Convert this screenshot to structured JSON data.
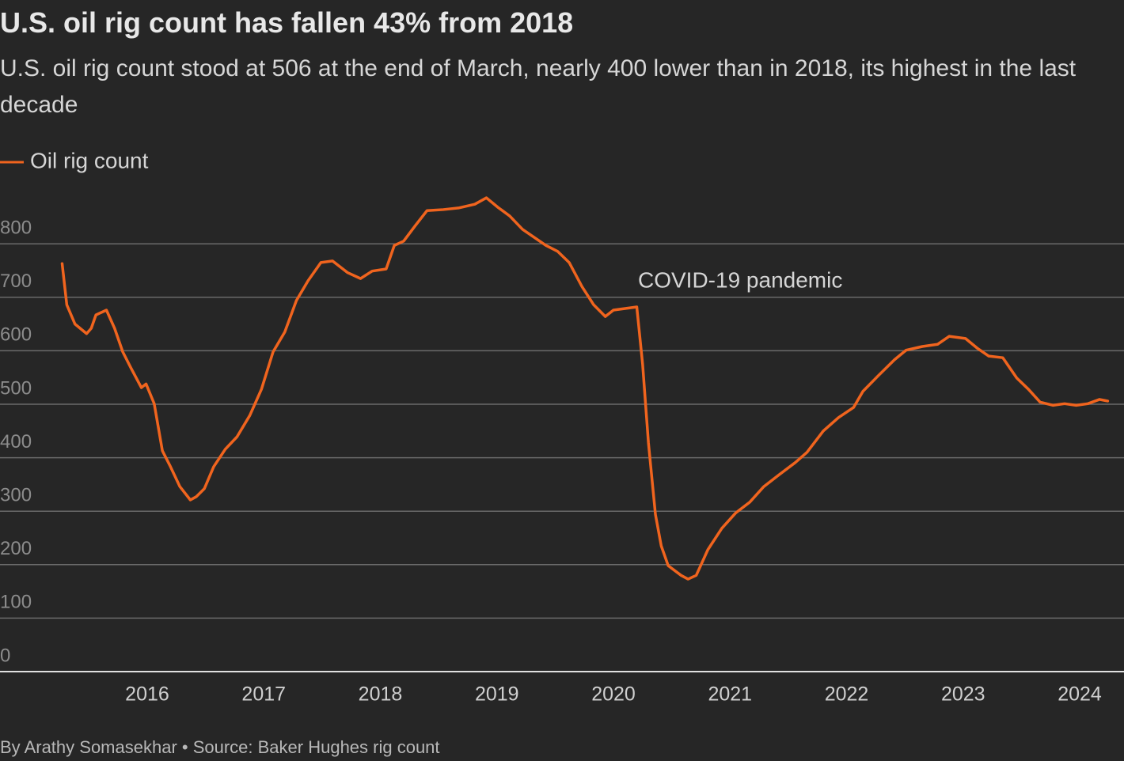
{
  "chart_data": {
    "type": "line",
    "title": "U.S. oil rig count has fallen 43% from 2018",
    "subtitle": "U.S. oil rig count stood at 506 at the end of March, nearly 400 lower than in 2018, its highest in the last decade",
    "annotation": "COVID-19 pandemic",
    "source": "By Arathy Somasekhar • Source: Baker Hughes rig count",
    "x": [
      2015.27,
      2015.31,
      2015.38,
      2015.48,
      2015.52,
      2015.56,
      2015.65,
      2015.72,
      2015.79,
      2015.86,
      2015.95,
      2015.99,
      2016.06,
      2016.13,
      2016.2,
      2016.28,
      2016.37,
      2016.42,
      2016.49,
      2016.57,
      2016.67,
      2016.77,
      2016.88,
      2016.98,
      2017.08,
      2017.18,
      2017.28,
      2017.38,
      2017.49,
      2017.59,
      2017.72,
      2017.83,
      2017.93,
      2018.05,
      2018.12,
      2018.2,
      2018.3,
      2018.4,
      2018.54,
      2018.67,
      2018.81,
      2018.91,
      2019.01,
      2019.11,
      2019.22,
      2019.32,
      2019.42,
      2019.52,
      2019.62,
      2019.73,
      2019.83,
      2019.93,
      2020.0,
      2020.1,
      2020.2,
      2020.25,
      2020.3,
      2020.36,
      2020.41,
      2020.47,
      2020.58,
      2020.64,
      2020.71,
      2020.81,
      2020.93,
      2021.05,
      2021.17,
      2021.29,
      2021.42,
      2021.56,
      2021.66,
      2021.8,
      2021.93,
      2022.06,
      2022.14,
      2022.27,
      2022.41,
      2022.51,
      2022.65,
      2022.78,
      2022.88,
      2023.02,
      2023.12,
      2023.22,
      2023.34,
      2023.46,
      2023.56,
      2023.66,
      2023.77,
      2023.87,
      2023.97,
      2024.07,
      2024.17,
      2024.24
    ],
    "series": [
      {
        "name": "Oil rig count",
        "color": "#f0641e",
        "values": [
          763,
          686,
          650,
          632,
          642,
          667,
          676,
          642,
          598,
          568,
          531,
          538,
          501,
          413,
          383,
          346,
          321,
          327,
          342,
          383,
          416,
          439,
          479,
          528,
          598,
          635,
          694,
          731,
          765,
          768,
          746,
          735,
          749,
          753,
          797,
          805,
          834,
          862,
          864,
          867,
          874,
          886,
          868,
          852,
          827,
          812,
          797,
          786,
          765,
          720,
          686,
          664,
          676,
          679,
          682,
          575,
          428,
          294,
          235,
          198,
          180,
          173,
          180,
          228,
          268,
          297,
          317,
          346,
          368,
          391,
          410,
          450,
          475,
          494,
          524,
          553,
          583,
          601,
          608,
          612,
          627,
          623,
          605,
          590,
          587,
          549,
          528,
          504,
          498,
          501,
          498,
          501,
          509,
          506
        ]
      }
    ],
    "xlim": [
      2014.737,
      2024.38
    ],
    "xticks": [
      2016,
      2017,
      2018,
      2019,
      2020,
      2021,
      2022,
      2023,
      2024
    ],
    "ylim": [
      0,
      900
    ],
    "yticks": [
      0,
      100,
      200,
      300,
      400,
      500,
      600,
      700,
      800
    ],
    "grid": true
  }
}
